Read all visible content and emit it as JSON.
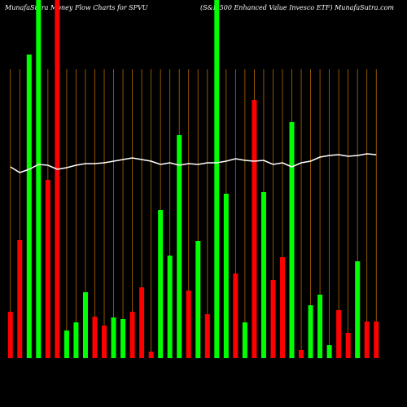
{
  "chart_data": {
    "type": "bar",
    "title": "MunafaSutra  Money Flow  Charts for SPVU",
    "subtitle": "(S&P 500   Enhanced Value   Invesco   ETF) MunafaSutra.com",
    "categories": [
      null,
      null,
      null,
      null,
      null,
      null,
      null,
      null,
      null,
      null,
      null,
      null,
      null,
      null,
      null,
      null,
      null,
      null,
      null,
      null,
      null,
      null,
      null,
      null,
      null,
      null,
      null,
      null,
      null,
      null,
      null,
      null,
      null,
      null,
      null,
      null,
      null,
      null,
      null,
      null
    ],
    "values": [
      57,
      145,
      373,
      440,
      219,
      440,
      34,
      44,
      81,
      51,
      40,
      50,
      48,
      57,
      87,
      8,
      182,
      126,
      274,
      83,
      144,
      54,
      440,
      202,
      104,
      44,
      317,
      204,
      96,
      124,
      290,
      10,
      65,
      78,
      16,
      59,
      31,
      119,
      45,
      45
    ],
    "colors": [
      "#ff0000",
      "#ff0000",
      "#00ff00",
      "#00ff00",
      "#ff0000",
      "#ff0000",
      "#00ff00",
      "#00ff00",
      "#00ff00",
      "#ff0000",
      "#ff0000",
      "#00ff00",
      "#00ff00",
      "#ff0000",
      "#ff0000",
      "#ff0000",
      "#00ff00",
      "#00ff00",
      "#00ff00",
      "#ff0000",
      "#00ff00",
      "#ff0000",
      "#00ff00",
      "#00ff00",
      "#ff0000",
      "#00ff00",
      "#ff0000",
      "#00ff00",
      "#ff0000",
      "#ff0000",
      "#00ff00",
      "#ff0000",
      "#00ff00",
      "#00ff00",
      "#00ff00",
      "#ff0000",
      "#ff0000",
      "#00ff00",
      "#ff0000",
      "#ff0000"
    ],
    "line": {
      "color": "#ffffff",
      "values": [
        235,
        228,
        232,
        238,
        237,
        232,
        234,
        237,
        239,
        239,
        240,
        242,
        244,
        246,
        244,
        242,
        238,
        240,
        237,
        239,
        238,
        240,
        240,
        242,
        245,
        243,
        242,
        243,
        238,
        240,
        235,
        240,
        242,
        247,
        249,
        250,
        248,
        249,
        251,
        250
      ]
    },
    "ylim": [
      0,
      440
    ],
    "grid": true,
    "grid_color": "#b36b00"
  }
}
